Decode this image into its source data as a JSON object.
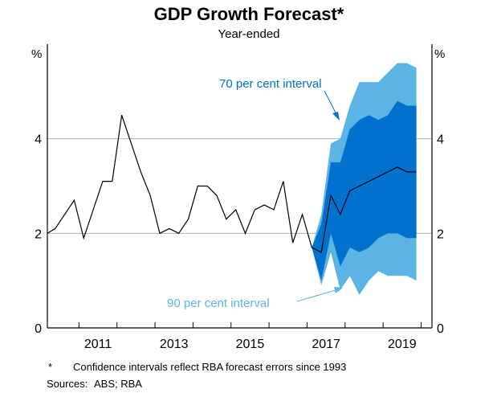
{
  "chart_data": {
    "type": "area",
    "title": "GDP Growth Forecast*",
    "subtitle": "Year-ended",
    "ylabel_left": "%",
    "ylabel_right": "%",
    "ylim": [
      0,
      6
    ],
    "yticks": [
      0,
      2,
      4
    ],
    "xlim": [
      "Mar-2010",
      "Dec-2019"
    ],
    "xtick_labels": [
      "2011",
      "2013",
      "2015",
      "2017",
      "2019"
    ],
    "grid": true,
    "colors": {
      "line": "#000000",
      "band70": "#0072CE",
      "band90": "#5BB4E3",
      "grid": "#b0b0b0"
    },
    "quarters": [
      "Mar-2010",
      "Jun-2010",
      "Sep-2010",
      "Dec-2010",
      "Mar-2011",
      "Jun-2011",
      "Sep-2011",
      "Dec-2011",
      "Mar-2012",
      "Jun-2012",
      "Sep-2012",
      "Dec-2012",
      "Mar-2013",
      "Jun-2013",
      "Sep-2013",
      "Dec-2013",
      "Mar-2014",
      "Jun-2014",
      "Sep-2014",
      "Dec-2014",
      "Mar-2015",
      "Jun-2015",
      "Sep-2015",
      "Dec-2015",
      "Mar-2016",
      "Jun-2016",
      "Sep-2016",
      "Dec-2016",
      "Mar-2017",
      "Jun-2017",
      "Sep-2017",
      "Dec-2017",
      "Mar-2018",
      "Jun-2018",
      "Sep-2018",
      "Dec-2018",
      "Mar-2019",
      "Jun-2019",
      "Sep-2019",
      "Dec-2019"
    ],
    "series": [
      {
        "values": [
          2.0,
          2.1,
          2.4,
          2.7,
          1.9,
          2.5,
          3.1,
          3.1,
          4.5,
          3.9,
          3.3,
          2.8,
          2.0,
          2.1,
          2.0,
          2.3,
          3.0,
          3.0,
          2.8,
          2.3,
          2.5,
          2.0,
          2.5,
          2.6,
          2.5,
          3.1,
          1.8,
          2.4,
          1.7,
          1.6,
          2.8,
          2.4,
          2.9,
          3.0,
          3.1,
          3.2,
          3.3,
          3.4,
          3.3,
          3.3
        ]
      }
    ],
    "bands": {
      "start_quarter": "Mar-2017",
      "interval_90": {
        "label": "90 per cent interval",
        "upper": [
          1.7,
          2.4,
          3.9,
          4.0,
          4.7,
          5.2,
          5.2,
          5.2,
          5.4,
          5.6,
          5.6,
          5.5
        ],
        "lower": [
          1.7,
          0.9,
          1.6,
          0.8,
          1.1,
          0.7,
          1.0,
          1.2,
          1.1,
          1.1,
          1.1,
          1.0
        ]
      },
      "interval_70": {
        "label": "70 per cent interval",
        "upper": [
          1.7,
          2.2,
          3.5,
          3.5,
          4.2,
          4.4,
          4.5,
          4.4,
          4.5,
          4.8,
          4.7,
          4.7
        ],
        "lower": [
          1.7,
          1.0,
          2.0,
          1.3,
          1.7,
          1.6,
          1.7,
          1.9,
          2.0,
          2.0,
          1.9,
          1.9
        ]
      }
    }
  },
  "footnote": {
    "marker": "*",
    "text": "Confidence intervals reflect RBA forecast errors since 1993",
    "sources_label": "Sources:",
    "sources": "ABS; RBA"
  }
}
